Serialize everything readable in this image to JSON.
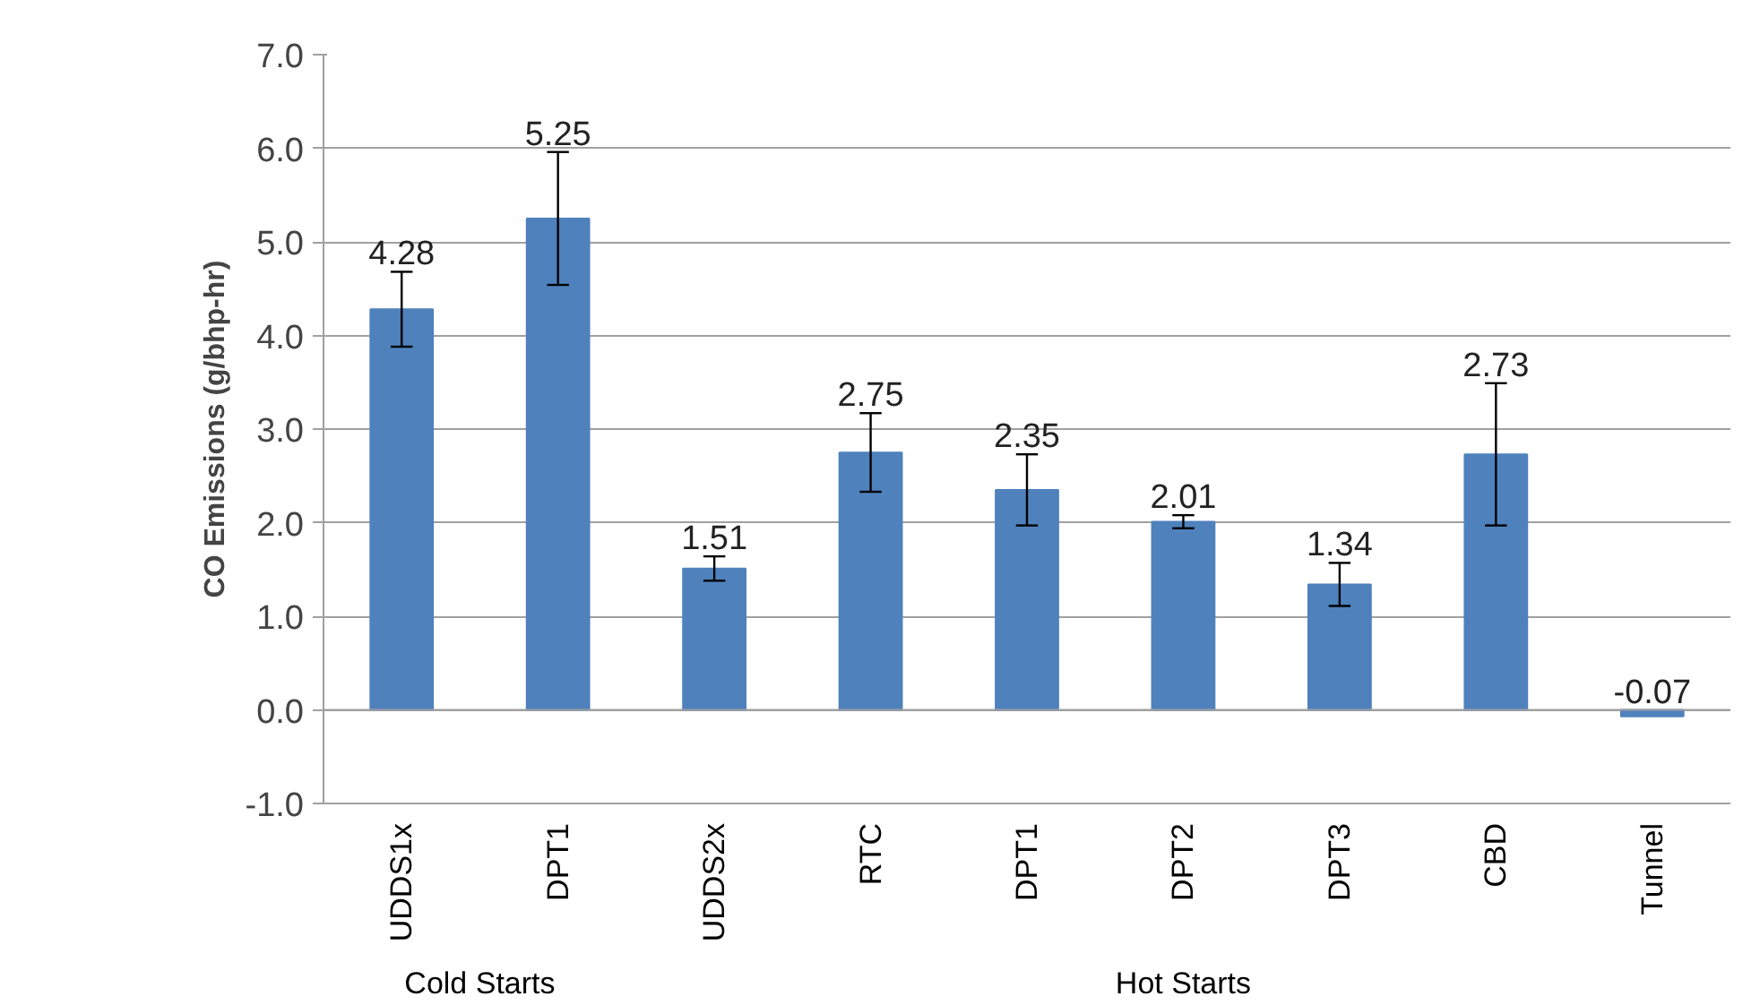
{
  "chart_data": {
    "type": "bar",
    "ylabel": "CO Emissions (g/bhp-hr)",
    "categories": [
      "UDDS1x",
      "DPT1",
      "UDDS2x",
      "RTC",
      "DPT1",
      "DPT2",
      "DPT3",
      "CBD",
      "Tunnel"
    ],
    "values": [
      4.28,
      5.25,
      1.51,
      2.75,
      2.35,
      2.01,
      1.34,
      2.73,
      -0.07
    ],
    "errors": [
      0.4,
      0.71,
      0.13,
      0.42,
      0.38,
      0.07,
      0.23,
      0.76,
      null
    ],
    "color": "#4f81bd",
    "data_labels": true,
    "ylim": [
      -1,
      7
    ],
    "yticks": [
      {
        "value": -1,
        "label": "-1.0"
      },
      {
        "value": 0,
        "label": "0.0"
      },
      {
        "value": 1,
        "label": "1.0"
      },
      {
        "value": 2,
        "label": "2.0"
      },
      {
        "value": 3,
        "label": "3.0"
      },
      {
        "value": 4,
        "label": "4.0"
      },
      {
        "value": 5,
        "label": "5.0"
      },
      {
        "value": 6,
        "label": "6.0"
      },
      {
        "value": 7,
        "label": "7.0"
      }
    ],
    "grid": "y",
    "annotations": [
      "Cold Starts",
      "Hot Starts"
    ]
  }
}
